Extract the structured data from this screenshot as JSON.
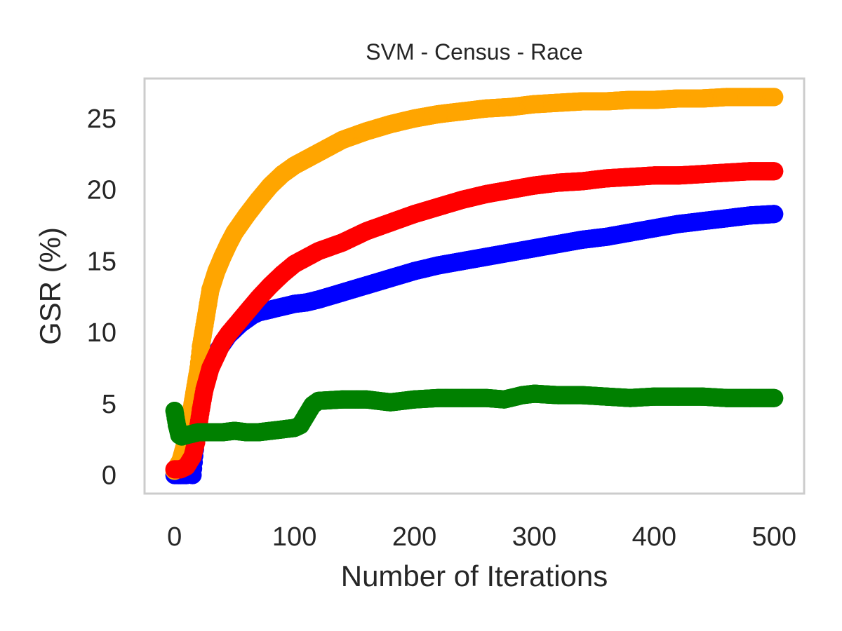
{
  "chart_data": {
    "type": "scatter",
    "title": "SVM - Census - Race",
    "xlabel": "Number of Iterations",
    "ylabel": "GSR (%)",
    "xlim": [
      -25,
      525
    ],
    "ylim": [
      -1.3,
      27.8
    ],
    "xticks": [
      0,
      100,
      200,
      300,
      400,
      500
    ],
    "yticks": [
      0,
      5,
      10,
      15,
      20,
      25
    ],
    "grid": false,
    "series": [
      {
        "color": "#0000ff",
        "points": [
          [
            0,
            0
          ],
          [
            5,
            0
          ],
          [
            10,
            0
          ],
          [
            12,
            0.3
          ],
          [
            14,
            0.8
          ],
          [
            15,
            0
          ],
          [
            17,
            1.8
          ],
          [
            18,
            3.5
          ],
          [
            20,
            4.8
          ],
          [
            22,
            5.8
          ],
          [
            25,
            6.8
          ],
          [
            30,
            8
          ],
          [
            35,
            8.6
          ],
          [
            40,
            9.2
          ],
          [
            45,
            9.8
          ],
          [
            50,
            10.2
          ],
          [
            55,
            10.6
          ],
          [
            60,
            10.9
          ],
          [
            65,
            11.2
          ],
          [
            70,
            11.4
          ],
          [
            80,
            11.6
          ],
          [
            90,
            11.8
          ],
          [
            100,
            12
          ],
          [
            110,
            12.1
          ],
          [
            120,
            12.3
          ],
          [
            140,
            12.8
          ],
          [
            160,
            13.3
          ],
          [
            180,
            13.8
          ],
          [
            200,
            14.3
          ],
          [
            220,
            14.7
          ],
          [
            240,
            15
          ],
          [
            260,
            15.3
          ],
          [
            280,
            15.6
          ],
          [
            300,
            15.9
          ],
          [
            320,
            16.2
          ],
          [
            340,
            16.5
          ],
          [
            360,
            16.7
          ],
          [
            380,
            17
          ],
          [
            400,
            17.3
          ],
          [
            420,
            17.6
          ],
          [
            440,
            17.8
          ],
          [
            460,
            18
          ],
          [
            480,
            18.2
          ],
          [
            500,
            18.3
          ]
        ]
      },
      {
        "color": "#ffa500",
        "points": [
          [
            0,
            0.3
          ],
          [
            5,
            1
          ],
          [
            10,
            2.5
          ],
          [
            15,
            5
          ],
          [
            20,
            7.5
          ],
          [
            22,
            9
          ],
          [
            25,
            10.5
          ],
          [
            28,
            12
          ],
          [
            30,
            13
          ],
          [
            35,
            14.3
          ],
          [
            40,
            15.3
          ],
          [
            45,
            16.2
          ],
          [
            50,
            17
          ],
          [
            60,
            18.2
          ],
          [
            70,
            19.3
          ],
          [
            80,
            20.3
          ],
          [
            90,
            21.1
          ],
          [
            100,
            21.7
          ],
          [
            120,
            22.6
          ],
          [
            140,
            23.5
          ],
          [
            160,
            24.1
          ],
          [
            180,
            24.6
          ],
          [
            200,
            25
          ],
          [
            220,
            25.3
          ],
          [
            240,
            25.5
          ],
          [
            260,
            25.7
          ],
          [
            280,
            25.8
          ],
          [
            300,
            26
          ],
          [
            320,
            26.1
          ],
          [
            340,
            26.2
          ],
          [
            360,
            26.2
          ],
          [
            380,
            26.3
          ],
          [
            400,
            26.3
          ],
          [
            420,
            26.4
          ],
          [
            440,
            26.4
          ],
          [
            460,
            26.5
          ],
          [
            480,
            26.5
          ],
          [
            500,
            26.5
          ]
        ]
      },
      {
        "color": "#ff0000",
        "points": [
          [
            0,
            0.4
          ],
          [
            5,
            0.4
          ],
          [
            10,
            0.6
          ],
          [
            15,
            1.3
          ],
          [
            18,
            2.3
          ],
          [
            20,
            3.5
          ],
          [
            22,
            4.6
          ],
          [
            25,
            6
          ],
          [
            30,
            7.5
          ],
          [
            35,
            8.4
          ],
          [
            40,
            9.3
          ],
          [
            45,
            9.9
          ],
          [
            50,
            10.4
          ],
          [
            55,
            10.9
          ],
          [
            60,
            11.4
          ],
          [
            70,
            12.4
          ],
          [
            80,
            13.3
          ],
          [
            90,
            14.1
          ],
          [
            100,
            14.8
          ],
          [
            120,
            15.7
          ],
          [
            140,
            16.3
          ],
          [
            160,
            17.1
          ],
          [
            180,
            17.7
          ],
          [
            200,
            18.3
          ],
          [
            220,
            18.8
          ],
          [
            240,
            19.3
          ],
          [
            260,
            19.7
          ],
          [
            280,
            20
          ],
          [
            300,
            20.3
          ],
          [
            320,
            20.5
          ],
          [
            340,
            20.6
          ],
          [
            360,
            20.8
          ],
          [
            380,
            20.9
          ],
          [
            400,
            21
          ],
          [
            420,
            21
          ],
          [
            440,
            21.1
          ],
          [
            460,
            21.2
          ],
          [
            480,
            21.3
          ],
          [
            500,
            21.3
          ]
        ]
      },
      {
        "color": "#008000",
        "points": [
          [
            0,
            4.5
          ],
          [
            2,
            3.5
          ],
          [
            4,
            2.8
          ],
          [
            6,
            2.7
          ],
          [
            10,
            2.8
          ],
          [
            15,
            2.9
          ],
          [
            20,
            3
          ],
          [
            30,
            3
          ],
          [
            40,
            3
          ],
          [
            50,
            3.1
          ],
          [
            60,
            3
          ],
          [
            70,
            3
          ],
          [
            80,
            3.1
          ],
          [
            90,
            3.2
          ],
          [
            100,
            3.3
          ],
          [
            105,
            3.5
          ],
          [
            110,
            4.2
          ],
          [
            115,
            4.9
          ],
          [
            120,
            5.2
          ],
          [
            140,
            5.3
          ],
          [
            160,
            5.3
          ],
          [
            180,
            5.1
          ],
          [
            200,
            5.3
          ],
          [
            220,
            5.4
          ],
          [
            240,
            5.4
          ],
          [
            260,
            5.4
          ],
          [
            275,
            5.3
          ],
          [
            290,
            5.6
          ],
          [
            300,
            5.7
          ],
          [
            320,
            5.6
          ],
          [
            340,
            5.6
          ],
          [
            360,
            5.5
          ],
          [
            380,
            5.4
          ],
          [
            400,
            5.5
          ],
          [
            420,
            5.5
          ],
          [
            440,
            5.5
          ],
          [
            460,
            5.4
          ],
          [
            480,
            5.4
          ],
          [
            500,
            5.4
          ]
        ]
      }
    ]
  }
}
